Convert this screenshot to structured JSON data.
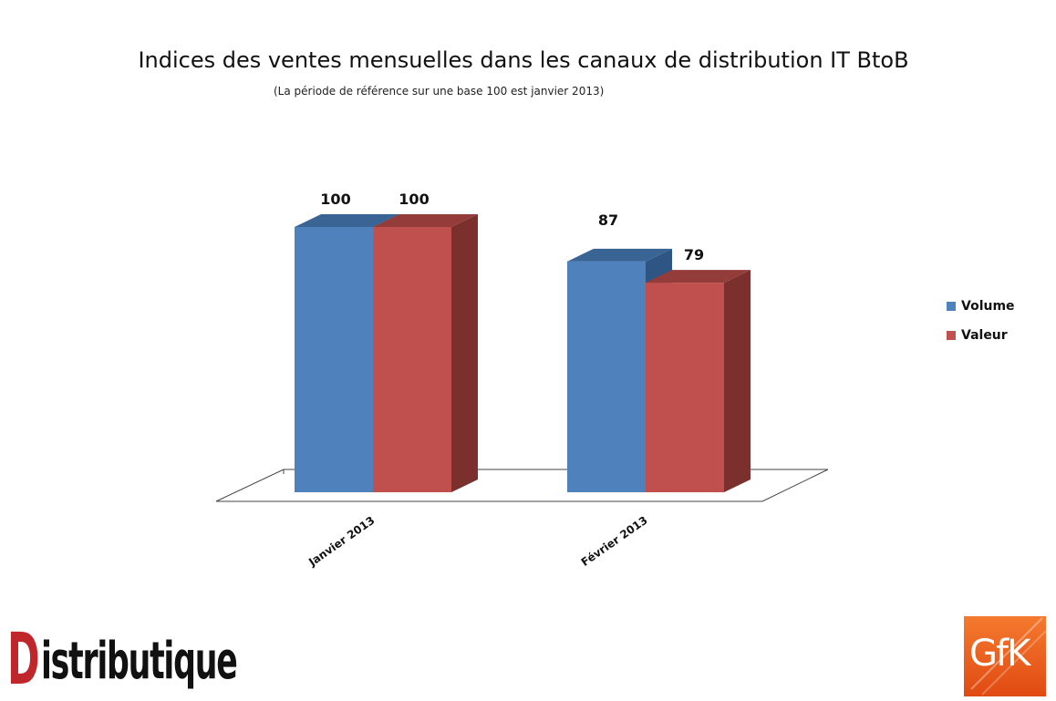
{
  "chart_data": {
    "type": "bar",
    "title": "Indices des ventes mensuelles dans les canaux de distribution IT BtoB",
    "subtitle": "(La période de référence sur une base 100 est janvier 2013)",
    "categories": [
      "Janvier 2013",
      "Février 2013"
    ],
    "series": [
      {
        "name": "Volume",
        "values": [
          100,
          87
        ],
        "color": "#4f81bd",
        "top_color": "#3a6494",
        "side_color": "#2f5585"
      },
      {
        "name": "Valeur",
        "values": [
          100,
          79
        ],
        "color": "#c0504d",
        "top_color": "#943c3a",
        "side_color": "#7b302e"
      }
    ],
    "ylim": [
      0,
      100
    ],
    "grid": false,
    "legend_position": "right",
    "style": "3d-clustered-column"
  },
  "logos": {
    "left_initial": "D",
    "left_rest": "istributique",
    "right": "GfK",
    "right_bg": "#e8571f"
  }
}
